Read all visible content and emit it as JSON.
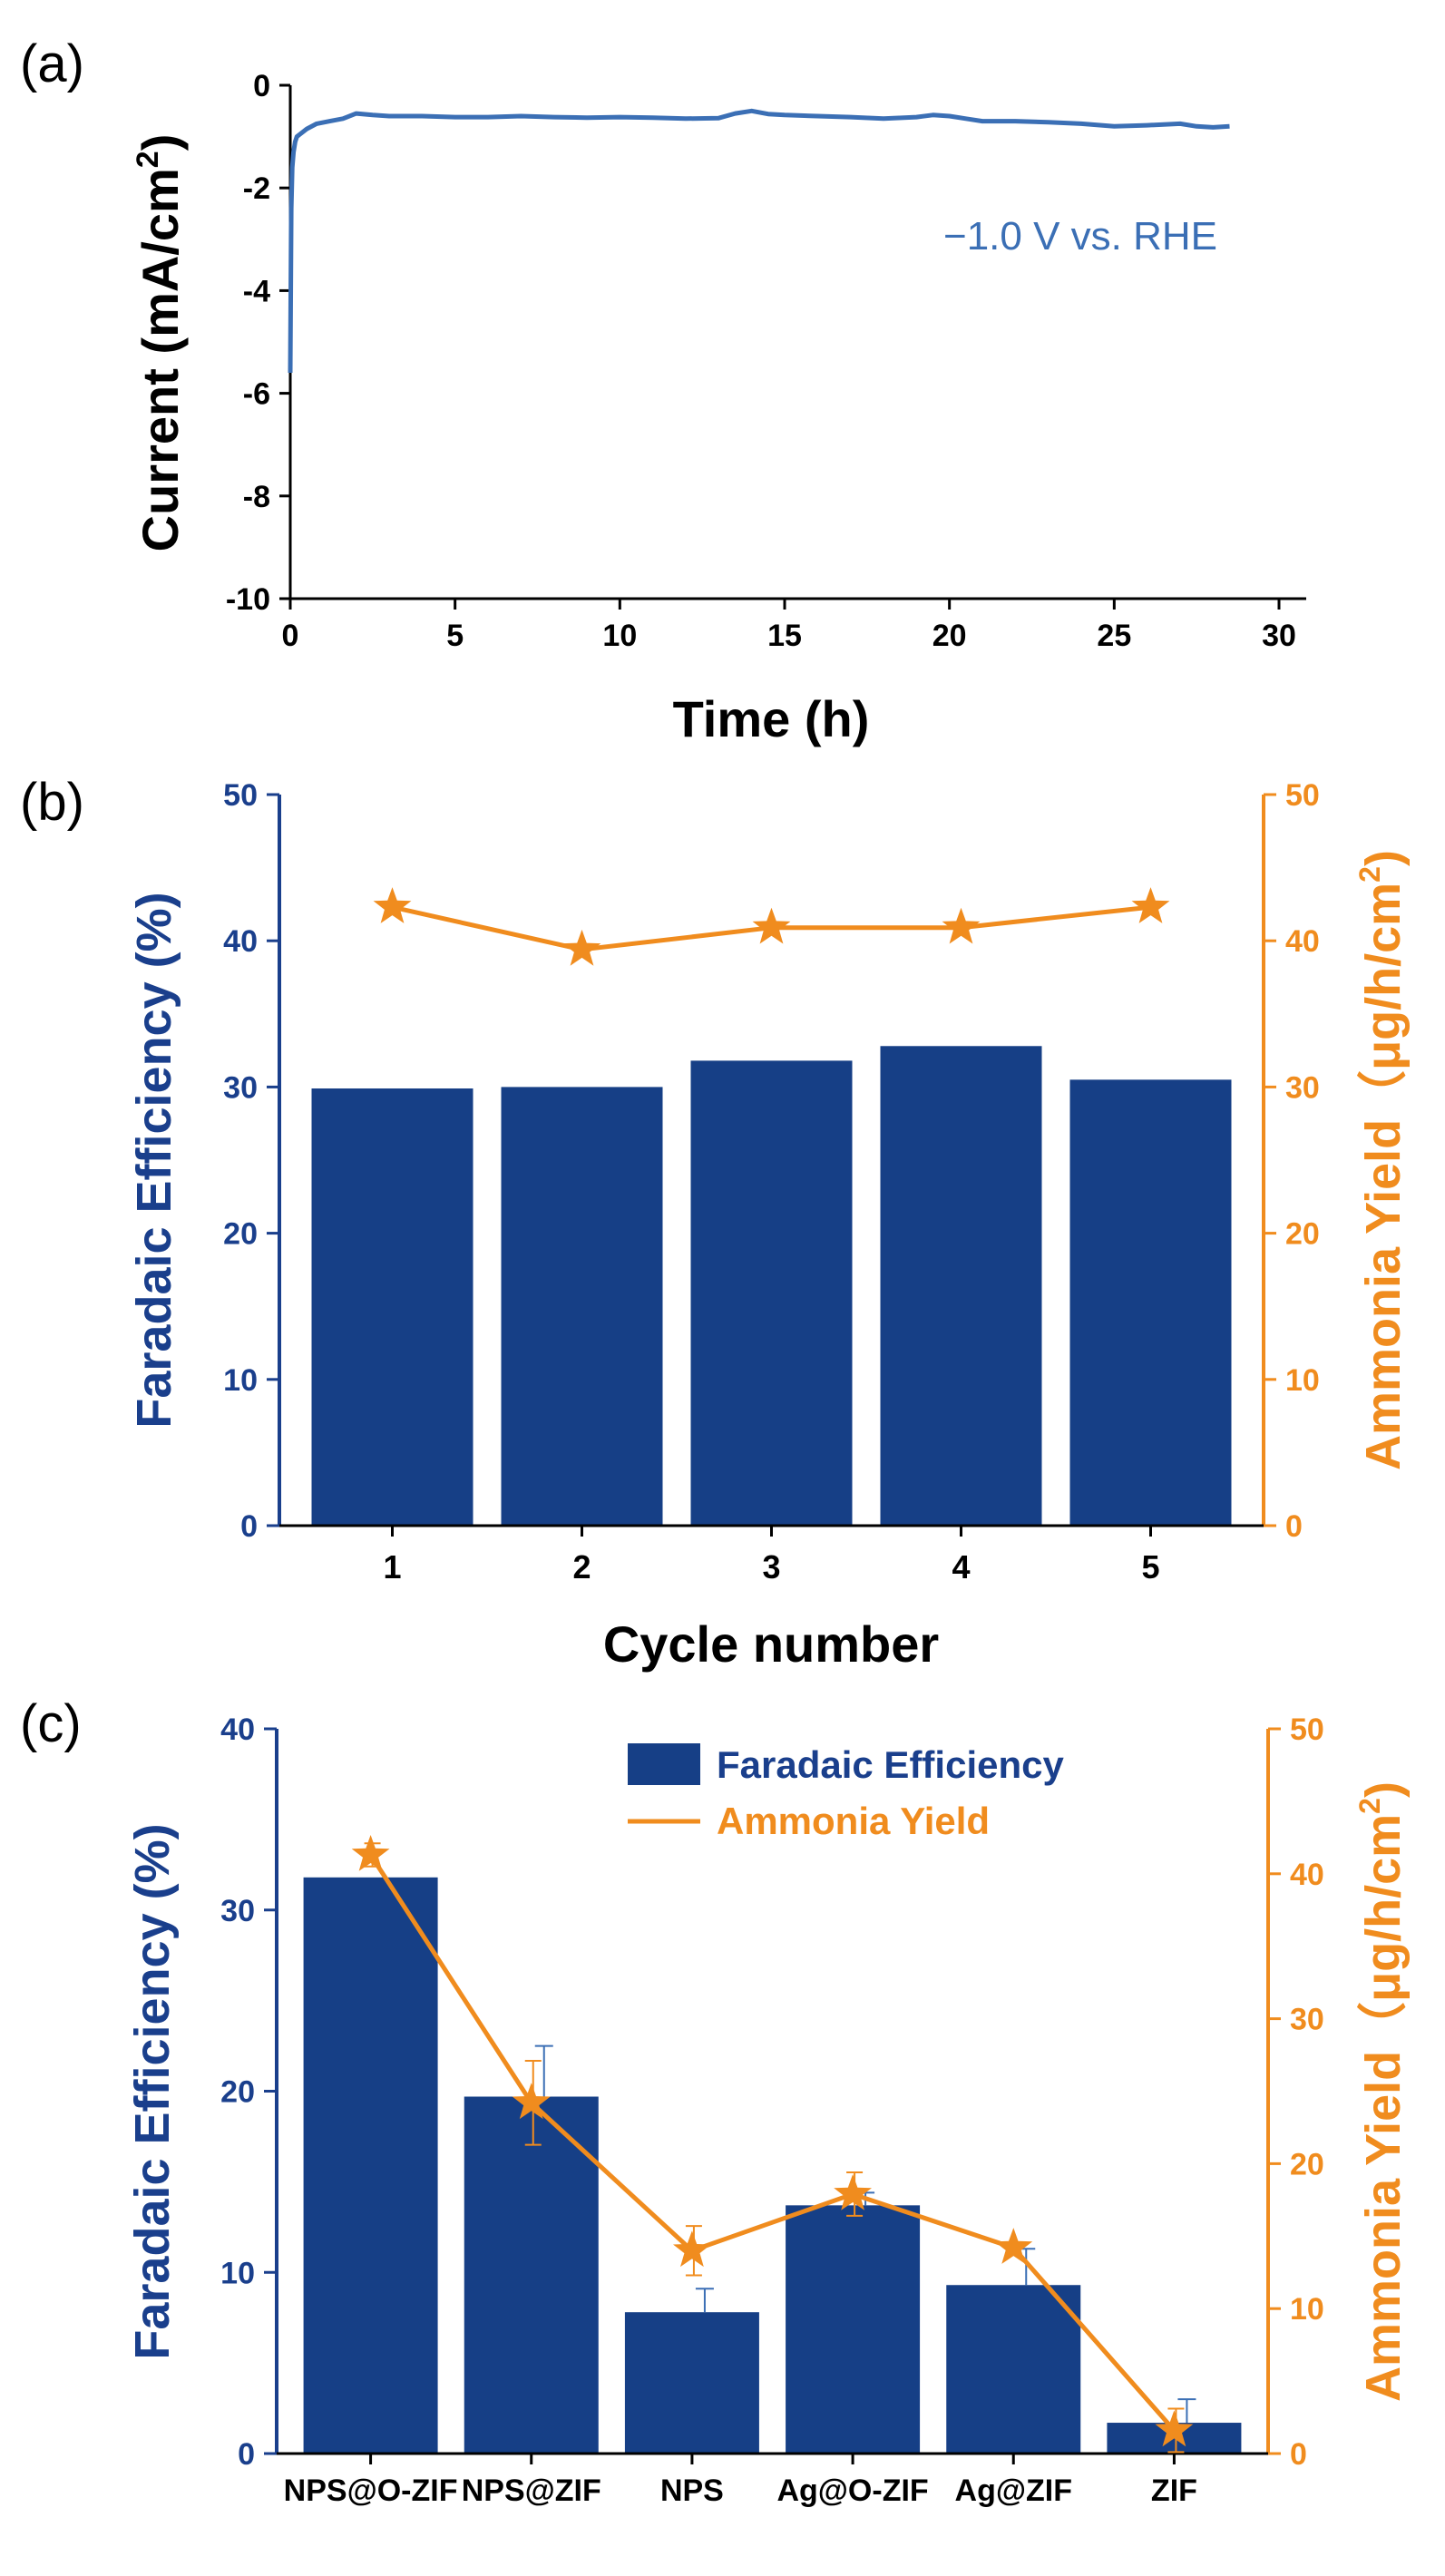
{
  "chart_data": [
    {
      "type": "line",
      "panel_label": "(a)",
      "xlabel": "Time (h)",
      "ylabel": "Current (mA/cm",
      "ylabel_sup": "2",
      "ylabel_close": ")",
      "xlim": [
        0,
        30
      ],
      "ylim": [
        -10,
        0
      ],
      "xticks": [
        0,
        5,
        10,
        15,
        20,
        25,
        30
      ],
      "yticks": [
        0,
        -2,
        -4,
        -6,
        -8,
        -10
      ],
      "annotation": "−1.0 V vs. RHE",
      "series": [
        {
          "name": "Current",
          "color": "#3b6fb5",
          "x": [
            0,
            0.03,
            0.06,
            0.1,
            0.15,
            0.2,
            0.3,
            0.5,
            0.8,
            1.2,
            1.6,
            2.0,
            2.5,
            3.0,
            4.0,
            5.0,
            6.0,
            7.0,
            8.0,
            9.0,
            10.0,
            11.0,
            12.0,
            13.0,
            13.5,
            14.0,
            14.5,
            15.0,
            16.0,
            17.0,
            18.0,
            19.0,
            19.5,
            20.0,
            20.5,
            21.0,
            22.0,
            23.0,
            24.0,
            25.0,
            26.0,
            27.0,
            27.5,
            28.0,
            28.5
          ],
          "y": [
            -5.6,
            -2.4,
            -1.6,
            -1.3,
            -1.1,
            -1.0,
            -0.95,
            -0.85,
            -0.75,
            -0.7,
            -0.65,
            -0.55,
            -0.58,
            -0.6,
            -0.6,
            -0.62,
            -0.62,
            -0.6,
            -0.62,
            -0.63,
            -0.62,
            -0.63,
            -0.65,
            -0.64,
            -0.55,
            -0.5,
            -0.56,
            -0.58,
            -0.6,
            -0.62,
            -0.65,
            -0.62,
            -0.58,
            -0.6,
            -0.65,
            -0.7,
            -0.7,
            -0.72,
            -0.75,
            -0.8,
            -0.78,
            -0.75,
            -0.8,
            -0.82,
            -0.8
          ]
        }
      ]
    },
    {
      "type": "bar",
      "panel_label": "(b)",
      "xlabel": "Cycle number",
      "ylabel": "Faradaic Efficiency (%)",
      "ylabel_right": "Ammonia Yield（μg/h/cm",
      "ylabel_right_sup": "2",
      "ylabel_right_close": ")",
      "categories": [
        "1",
        "2",
        "3",
        "4",
        "5"
      ],
      "ylim": [
        0,
        50
      ],
      "ylim_right": [
        0,
        50
      ],
      "yticks": [
        0,
        10,
        20,
        30,
        40,
        50
      ],
      "series": [
        {
          "name": "Faradaic Efficiency",
          "axis": "left",
          "kind": "bar",
          "color": "#163f86",
          "values": [
            29.9,
            30.0,
            31.8,
            32.8,
            30.5
          ]
        },
        {
          "name": "Ammonia Yield",
          "axis": "right",
          "kind": "line",
          "marker": "star",
          "color": "#f08c1e",
          "values": [
            42.3,
            39.4,
            40.9,
            40.9,
            42.3
          ]
        }
      ]
    },
    {
      "type": "bar",
      "panel_label": "(c)",
      "xlabel": "",
      "ylabel": "Faradaic Efficiency (%)",
      "ylabel_right": "Ammonia Yield（μg/h/cm",
      "ylabel_right_sup": "2",
      "ylabel_right_close": ")",
      "categories": [
        "NPS@O-ZIF",
        "NPS@ZIF",
        "NPS",
        "Ag@O-ZIF",
        "Ag@ZIF",
        "ZIF"
      ],
      "ylim": [
        0,
        40
      ],
      "ylim_right": [
        0,
        50
      ],
      "yticks": [
        0,
        10,
        20,
        30,
        40
      ],
      "yticks_right": [
        0,
        10,
        20,
        30,
        40,
        50
      ],
      "legend": [
        "Faradaic Efficiency",
        "Ammonia Yield"
      ],
      "legend_position": "top-right",
      "series": [
        {
          "name": "Faradaic Efficiency",
          "axis": "left",
          "kind": "bar",
          "color": "#163f86",
          "values": [
            31.8,
            19.7,
            7.8,
            13.7,
            9.3,
            1.7
          ],
          "errors": [
            0,
            2.8,
            1.3,
            0.7,
            2.0,
            1.3
          ]
        },
        {
          "name": "Ammonia Yield",
          "axis": "right",
          "kind": "line",
          "marker": "star",
          "color": "#f08c1e",
          "values": [
            41.3,
            24.2,
            14.0,
            17.9,
            14.2,
            1.6
          ],
          "errors": [
            0.8,
            2.9,
            1.7,
            1.5,
            0,
            1.5
          ]
        }
      ]
    }
  ]
}
